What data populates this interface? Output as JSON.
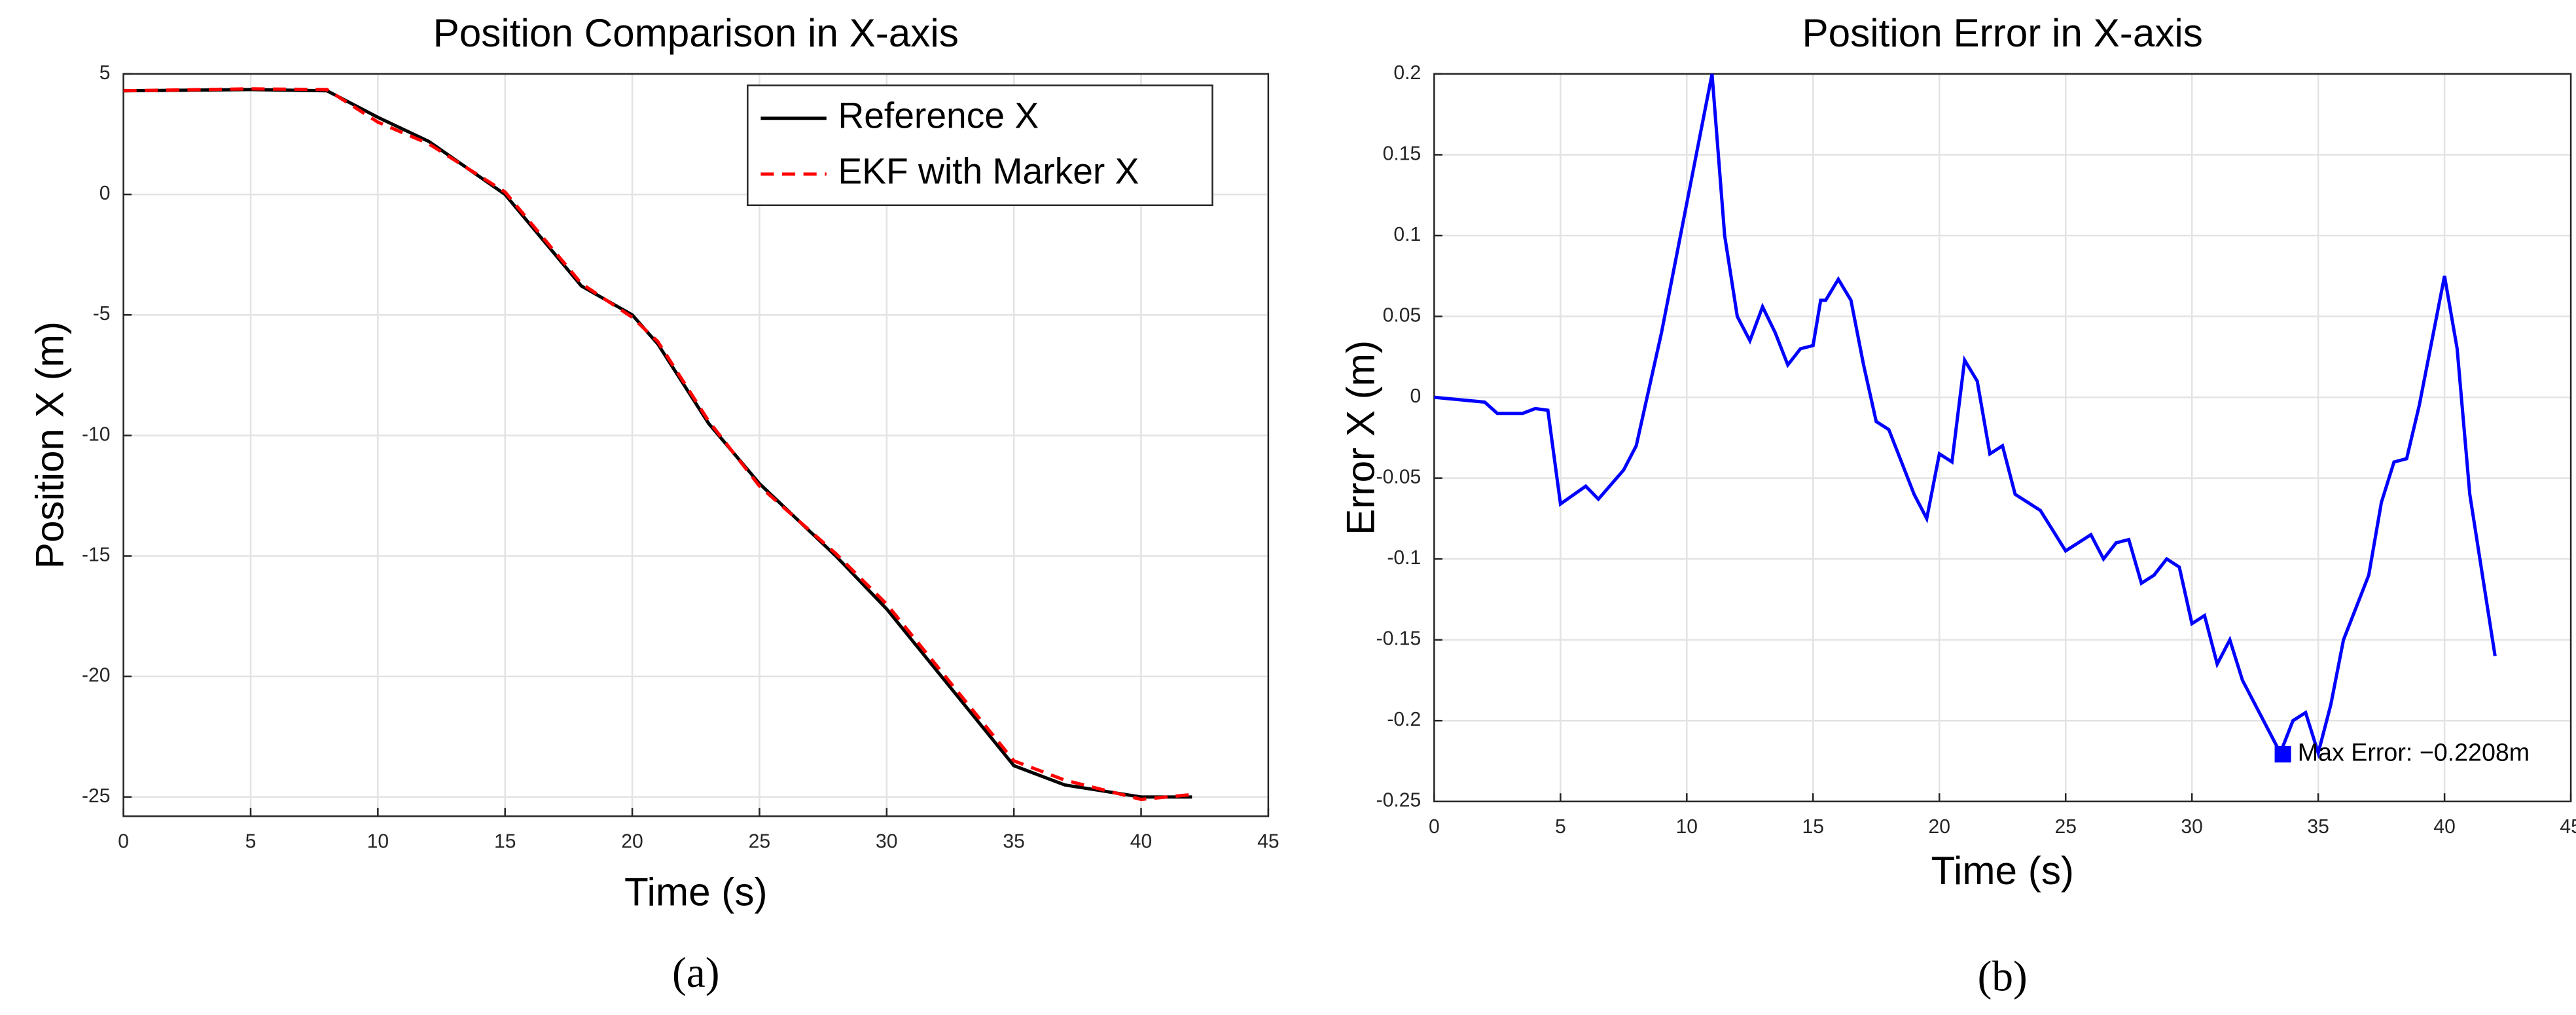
{
  "chart_data": [
    {
      "type": "line",
      "title": "Position Comparison in X-axis",
      "xlabel": "Time (s)",
      "ylabel": "Position X (m)",
      "caption": "(a)",
      "x": [
        0,
        5,
        8,
        10,
        12,
        15,
        18,
        20,
        21,
        23,
        25,
        28,
        30,
        32,
        35,
        37,
        40,
        42
      ],
      "series": [
        {
          "name": "Reference X",
          "color": "#000000",
          "dash": false,
          "values": [
            4.3,
            4.35,
            4.3,
            3.2,
            2.2,
            0,
            -3.8,
            -5,
            -6.2,
            -9.5,
            -12,
            -15,
            -17.2,
            -19.8,
            -23.7,
            -24.5,
            -25,
            -25
          ]
        },
        {
          "name": "EKF with Marker X",
          "color": "#ff0000",
          "dash": true,
          "values": [
            4.3,
            4.38,
            4.35,
            3.0,
            2.1,
            0.1,
            -3.7,
            -5.1,
            -6.1,
            -9.4,
            -12.1,
            -14.9,
            -17.0,
            -19.6,
            -23.5,
            -24.3,
            -25.1,
            -24.9
          ]
        }
      ],
      "xlim": [
        0,
        45
      ],
      "xticks": [
        0,
        5,
        10,
        15,
        20,
        25,
        30,
        35,
        40,
        45
      ],
      "ylim": [
        -25.8,
        5
      ],
      "yticks": [
        5,
        0,
        -5,
        -10,
        -15,
        -20,
        -25
      ],
      "grid": true,
      "legend": "upper right"
    },
    {
      "type": "line",
      "title": "Position Error in X-axis",
      "xlabel": "Time (s)",
      "ylabel": "Error X (m)",
      "caption": "(b)",
      "x": [
        0,
        2,
        2.5,
        3.5,
        4,
        4.5,
        5,
        6,
        6.5,
        7.5,
        8,
        9,
        11,
        11.5,
        12,
        12.5,
        13,
        13.5,
        14,
        14.5,
        15,
        15.3,
        15.5,
        16,
        16.5,
        17,
        17.5,
        18,
        19,
        19.5,
        20,
        20.5,
        21,
        21.5,
        22,
        22.5,
        23,
        24,
        25,
        25.5,
        26,
        26.5,
        27,
        27.5,
        28,
        28.5,
        29,
        29.5,
        30,
        30.5,
        31,
        31.5,
        32,
        33,
        33.5,
        34,
        34.5,
        35,
        35.5,
        36,
        37,
        37.5,
        38,
        38.5,
        39,
        40,
        40.5,
        41,
        42
      ],
      "series": [
        {
          "name": "Error X",
          "color": "#0000ff",
          "dash": false,
          "values": [
            0,
            -0.003,
            -0.01,
            -0.01,
            -0.007,
            -0.008,
            -0.066,
            -0.055,
            -0.063,
            -0.045,
            -0.03,
            0.04,
            0.2,
            0.1,
            0.05,
            0.035,
            0.056,
            0.04,
            0.02,
            0.03,
            0.032,
            0.06,
            0.06,
            0.073,
            0.06,
            0.02,
            -0.015,
            -0.02,
            -0.06,
            -0.075,
            -0.035,
            -0.04,
            0.023,
            0.01,
            -0.035,
            -0.03,
            -0.06,
            -0.07,
            -0.095,
            -0.09,
            -0.085,
            -0.1,
            -0.09,
            -0.088,
            -0.115,
            -0.11,
            -0.1,
            -0.105,
            -0.14,
            -0.135,
            -0.165,
            -0.15,
            -0.175,
            -0.205,
            -0.22,
            -0.2,
            -0.195,
            -0.22,
            -0.19,
            -0.15,
            -0.11,
            -0.065,
            -0.04,
            -0.038,
            -0.005,
            0.075,
            0.03,
            -0.06,
            -0.16
          ]
        }
      ],
      "xlim": [
        0,
        45
      ],
      "xticks": [
        0,
        5,
        10,
        15,
        20,
        25,
        30,
        35,
        40,
        45
      ],
      "ylim": [
        -0.25,
        0.2
      ],
      "yticks": [
        0.2,
        0.15,
        0.1,
        0.05,
        0,
        -0.05,
        -0.1,
        -0.15,
        -0.2,
        -0.25
      ],
      "grid": true,
      "annotation": {
        "x": 33.6,
        "y": -0.2208,
        "text": "Max Error: −0.2208m",
        "color": "#0000ff"
      }
    }
  ]
}
